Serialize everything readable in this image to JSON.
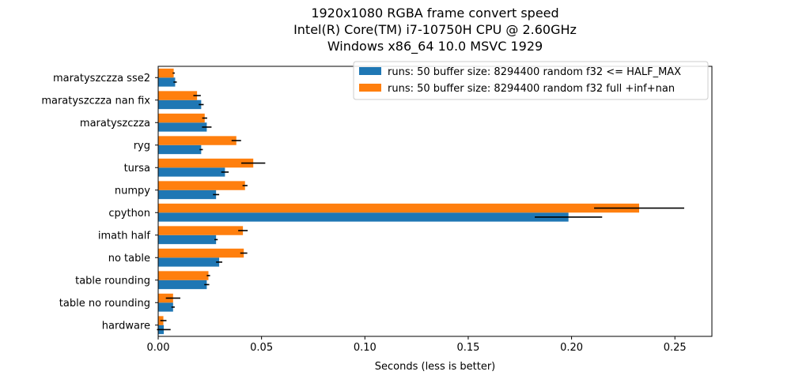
{
  "chart_data": {
    "type": "bar",
    "orientation": "horizontal",
    "title": [
      "1920x1080 RGBA frame convert speed",
      "Intel(R) Core(TM) i7-10750H CPU @ 2.60GHz",
      "Windows x86_64 10.0 MSVC 1929"
    ],
    "xlabel": "Seconds (less is better)",
    "ylabel": "",
    "xlim": [
      0,
      0.2679
    ],
    "xticks": [
      0.0,
      0.05,
      0.1,
      0.15,
      0.2,
      0.25
    ],
    "xtick_labels": [
      "0.00",
      "0.05",
      "0.10",
      "0.15",
      "0.20",
      "0.25"
    ],
    "categories": [
      "hardware",
      "table no rounding",
      "table rounding",
      "no table",
      "imath half",
      "cpython",
      "numpy",
      "tursa",
      "ryg",
      "maratyszczza",
      "maratyszczza nan fix",
      "maratyszczza sse2"
    ],
    "series": [
      {
        "name": "runs: 50 buffer size: 8294400 random f32 <= HALF_MAX",
        "color": "#1f77b4",
        "values": [
          0.0027,
          0.0072,
          0.0235,
          0.0295,
          0.028,
          0.1985,
          0.028,
          0.0323,
          0.0208,
          0.0235,
          0.0208,
          0.0082
        ],
        "errors": [
          0.0033,
          0.0008,
          0.0012,
          0.0015,
          0.0008,
          0.0163,
          0.0015,
          0.0018,
          0.0008,
          0.0023,
          0.0012,
          0.0008
        ]
      },
      {
        "name": "runs: 50 buffer size: 8294400 random f32 full +inf+nan",
        "color": "#ff7f0e",
        "values": [
          0.0025,
          0.0072,
          0.0243,
          0.0414,
          0.041,
          0.2327,
          0.042,
          0.046,
          0.0378,
          0.0225,
          0.0188,
          0.0075
        ],
        "errors": [
          0.0015,
          0.0035,
          0.0008,
          0.0017,
          0.0023,
          0.0218,
          0.0012,
          0.0058,
          0.0023,
          0.0012,
          0.0018,
          0.0005
        ]
      }
    ],
    "legend_position": "upper right",
    "grid": false
  }
}
